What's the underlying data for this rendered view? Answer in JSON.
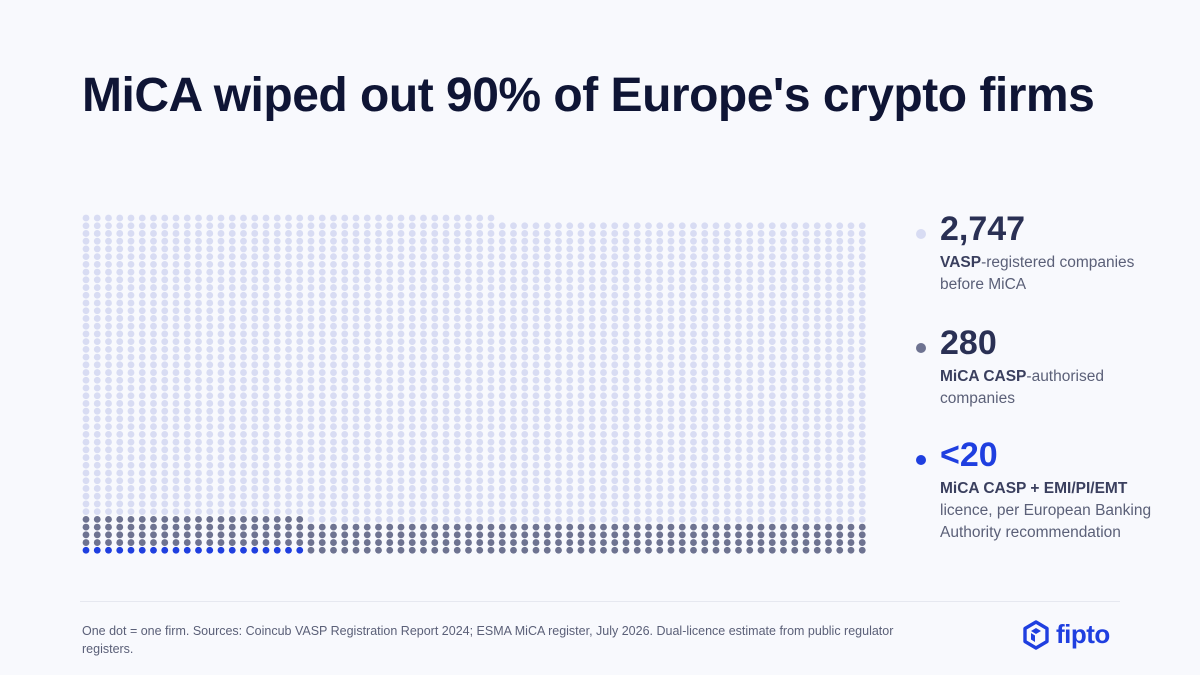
{
  "title": "MiCA wiped out 90% of Europe's crypto firms",
  "colors": {
    "vasp": "#d8dcf3",
    "casp": "#6e7391",
    "dual": "#1f3fe0",
    "brand": "#1f3fe0"
  },
  "chart_data": {
    "type": "waffle",
    "unit": "One dot = one firm",
    "columns": 120,
    "series": [
      {
        "name": "MiCA CASP + EMI/PI/EMT",
        "value": 20,
        "color": "#1f3fe0"
      },
      {
        "name": "MiCA CASP-authorised",
        "value": 280,
        "color": "#6e7391"
      },
      {
        "name": "VASP-registered",
        "value": 2747,
        "color": "#d8dcf3"
      }
    ]
  },
  "stats": [
    {
      "value": "2,747",
      "desc_bold": "VASP",
      "desc_rest": "-registered companies before MiCA"
    },
    {
      "value": "280",
      "desc_bold": "MiCA CASP",
      "desc_rest": "-authorised companies"
    },
    {
      "value": "<20",
      "desc_bold": "MiCA CASP + EMI/PI/EMT",
      "desc_rest": " licence, per European Banking Authority recommendation"
    }
  ],
  "footnote": "One dot = one firm. Sources: Coincub VASP Registration Report 2024; ESMA MiCA register, July 2026. Dual-licence estimate from public regulator registers.",
  "logo": {
    "text": "fipto",
    "icon": "hexagon-logo-icon"
  }
}
